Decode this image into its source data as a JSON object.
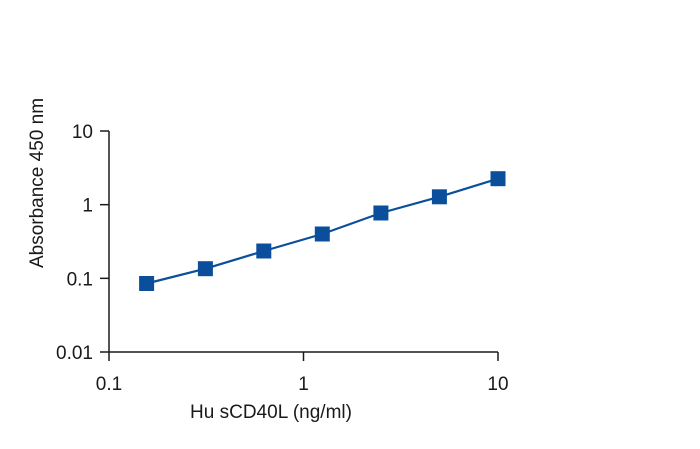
{
  "chart_data": {
    "type": "scatter",
    "xlabel": "Hu sCD40L (ng/ml)",
    "ylabel": "Absorbance 450 nm",
    "x_scale": "log",
    "y_scale": "log",
    "xlim": [
      0.1,
      10
    ],
    "ylim": [
      0.01,
      10
    ],
    "x_ticks": [
      {
        "value": 0.1,
        "label": "0.1"
      },
      {
        "value": 1,
        "label": "1"
      },
      {
        "value": 10,
        "label": "10"
      }
    ],
    "y_ticks": [
      {
        "value": 0.01,
        "label": "0.01"
      },
      {
        "value": 0.1,
        "label": "0.1"
      },
      {
        "value": 1,
        "label": "1"
      },
      {
        "value": 10,
        "label": "10"
      }
    ],
    "grid": false,
    "series": [
      {
        "marker": "square",
        "color": "#0b4f9c",
        "line": true,
        "x": [
          0.156,
          0.313,
          0.625,
          1.25,
          2.5,
          5,
          10
        ],
        "y": [
          0.085,
          0.135,
          0.235,
          0.4,
          0.77,
          1.28,
          2.25
        ]
      }
    ]
  }
}
